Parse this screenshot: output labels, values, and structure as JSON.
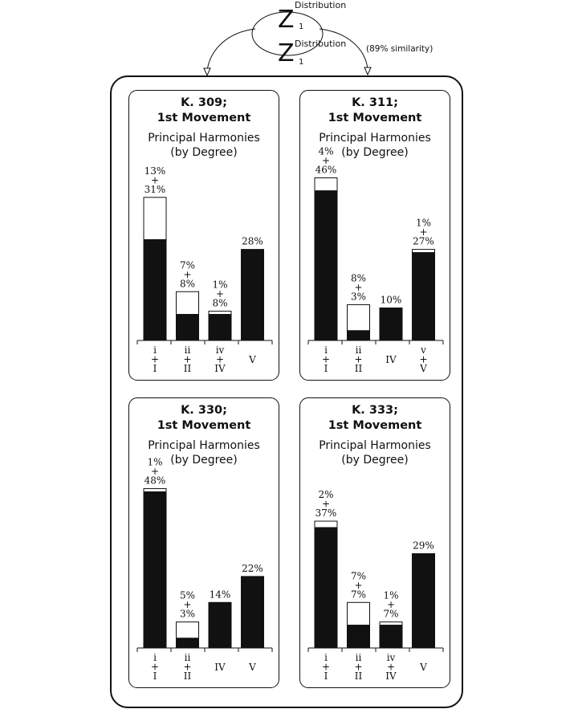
{
  "top": {
    "distribution_label_1": "Distribution",
    "distribution_label_2": "Distribution",
    "z_symbol": "Z",
    "subscript": "1",
    "similarity_note": "(89% similarity)"
  },
  "chart_data": [
    {
      "type": "bar",
      "stacked": true,
      "title_line1": "K. 309;",
      "title_line2": "1st Movement",
      "subtitle_line1": "Principal Harmonies",
      "subtitle_line2": "(by Degree)",
      "categories": [
        [
          "i",
          "+",
          "I"
        ],
        [
          "ii",
          "+",
          "II"
        ],
        [
          "iv",
          "+",
          "IV"
        ],
        [
          "V"
        ]
      ],
      "series": [
        {
          "values": [
            31,
            8,
            8,
            28
          ]
        },
        {
          "values": [
            13,
            7,
            1,
            0
          ]
        }
      ],
      "data_labels": [
        [
          "13%",
          "+",
          "31%"
        ],
        [
          "7%",
          "+",
          "8%"
        ],
        [
          "1%",
          "+",
          "8%"
        ],
        [
          "28%"
        ]
      ],
      "ylim": [
        0,
        50
      ]
    },
    {
      "type": "bar",
      "stacked": true,
      "title_line1": "K. 311;",
      "title_line2": "1st Movement",
      "subtitle_line1": "Principal Harmonies",
      "subtitle_line2": "(by Degree)",
      "categories": [
        [
          "i",
          "+",
          "I"
        ],
        [
          "ii",
          "+",
          "II"
        ],
        [
          "IV"
        ],
        [
          "v",
          "+",
          "V"
        ]
      ],
      "series": [
        {
          "values": [
            46,
            3,
            10,
            27
          ]
        },
        {
          "values": [
            4,
            8,
            0,
            1
          ]
        }
      ],
      "data_labels": [
        [
          "4%",
          "+",
          "46%"
        ],
        [
          "8%",
          "+",
          "3%"
        ],
        [
          "10%"
        ],
        [
          "1%",
          "+",
          "27%"
        ]
      ],
      "ylim": [
        0,
        50
      ]
    },
    {
      "type": "bar",
      "stacked": true,
      "title_line1": "K. 330;",
      "title_line2": "1st Movement",
      "subtitle_line1": "Principal Harmonies",
      "subtitle_line2": "(by Degree)",
      "categories": [
        [
          "i",
          "+",
          "I"
        ],
        [
          "ii",
          "+",
          "II"
        ],
        [
          "IV"
        ],
        [
          "V"
        ]
      ],
      "series": [
        {
          "values": [
            48,
            3,
            14,
            22
          ]
        },
        {
          "values": [
            1,
            5,
            0,
            0
          ]
        }
      ],
      "data_labels": [
        [
          "1%",
          "+",
          "48%"
        ],
        [
          "5%",
          "+",
          "3%"
        ],
        [
          "14%"
        ],
        [
          "22%"
        ]
      ],
      "ylim": [
        0,
        50
      ]
    },
    {
      "type": "bar",
      "stacked": true,
      "title_line1": "K. 333;",
      "title_line2": "1st Movement",
      "subtitle_line1": "Principal Harmonies",
      "subtitle_line2": "(by Degree)",
      "categories": [
        [
          "i",
          "+",
          "I"
        ],
        [
          "ii",
          "+",
          "II"
        ],
        [
          "iv",
          "+",
          "IV"
        ],
        [
          "V"
        ]
      ],
      "series": [
        {
          "values": [
            37,
            7,
            7,
            29
          ]
        },
        {
          "values": [
            2,
            7,
            1,
            0
          ]
        }
      ],
      "data_labels": [
        [
          "2%",
          "+",
          "37%"
        ],
        [
          "7%",
          "+",
          "7%"
        ],
        [
          "1%",
          "+",
          "7%"
        ],
        [
          "29%"
        ]
      ],
      "ylim": [
        0,
        50
      ]
    }
  ]
}
